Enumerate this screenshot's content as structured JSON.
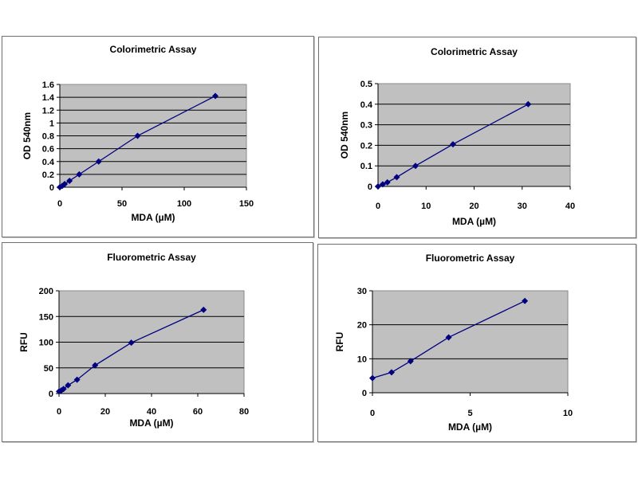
{
  "colors": {
    "plot_bg": "#c0c0c0",
    "grid": "#000000",
    "series": "#000080",
    "panel_border": "#6e6e6e"
  },
  "chart_data": [
    {
      "type": "line",
      "title": "Colorimetric Assay",
      "xlabel": "MDA (µM)",
      "ylabel": "OD 540nm",
      "xlim": [
        0,
        150
      ],
      "ylim": [
        0,
        1.6
      ],
      "xticks": [
        "0",
        "50",
        "100",
        "150"
      ],
      "yticks": [
        "0",
        "0.2",
        "0.4",
        "0.6",
        "0.8",
        "1",
        "1.2",
        "1.4",
        "1.6"
      ],
      "grid": "horizontal",
      "marker": "diamond",
      "series": [
        {
          "name": "Colorimetric",
          "x": [
            0,
            1.95,
            3.9,
            7.8,
            15.6,
            31.25,
            62.5,
            125
          ],
          "y": [
            0,
            0.02,
            0.05,
            0.1,
            0.2,
            0.4,
            0.8,
            1.42
          ]
        }
      ]
    },
    {
      "type": "line",
      "title": "Colorimetric Assay",
      "xlabel": "MDA (µM)",
      "ylabel": "OD 540nm",
      "xlim": [
        0,
        40
      ],
      "ylim": [
        0,
        0.5
      ],
      "xticks": [
        "0",
        "10",
        "20",
        "30",
        "40"
      ],
      "yticks": [
        "0",
        "0.1",
        "0.2",
        "0.3",
        "0.4",
        "0.5"
      ],
      "grid": "horizontal",
      "marker": "diamond",
      "series": [
        {
          "name": "Colorimetric",
          "x": [
            0,
            0.98,
            1.95,
            3.9,
            7.8,
            15.6,
            31.25
          ],
          "y": [
            0,
            0.01,
            0.02,
            0.045,
            0.1,
            0.205,
            0.4
          ]
        }
      ]
    },
    {
      "type": "line",
      "title": "Fluorometric Assay",
      "xlabel": "MDA (µM)",
      "ylabel": "RFU",
      "xlim": [
        0,
        80
      ],
      "ylim": [
        0,
        200
      ],
      "xticks": [
        "0",
        "20",
        "40",
        "60",
        "80"
      ],
      "yticks": [
        "0",
        "50",
        "100",
        "150",
        "200"
      ],
      "grid": "horizontal",
      "marker": "diamond",
      "series": [
        {
          "name": "Fluorometric",
          "x": [
            0,
            0.98,
            1.95,
            3.9,
            7.8,
            15.6,
            31.25,
            62.5
          ],
          "y": [
            4,
            6,
            9,
            16,
            27,
            55,
            99,
            163
          ]
        }
      ]
    },
    {
      "type": "line",
      "title": "Fluorometric Assay",
      "xlabel": "MDA (µM)",
      "ylabel": "RFU",
      "xlim": [
        0,
        10
      ],
      "ylim": [
        0,
        30
      ],
      "xticks": [
        "0",
        "5",
        "10"
      ],
      "yticks": [
        "0",
        "10",
        "20",
        "30"
      ],
      "grid": "horizontal",
      "marker": "diamond",
      "series": [
        {
          "name": "Fluorometric",
          "x": [
            0,
            0.98,
            1.95,
            3.9,
            7.8
          ],
          "y": [
            4.3,
            6,
            9.3,
            16.3,
            27
          ]
        }
      ]
    }
  ]
}
